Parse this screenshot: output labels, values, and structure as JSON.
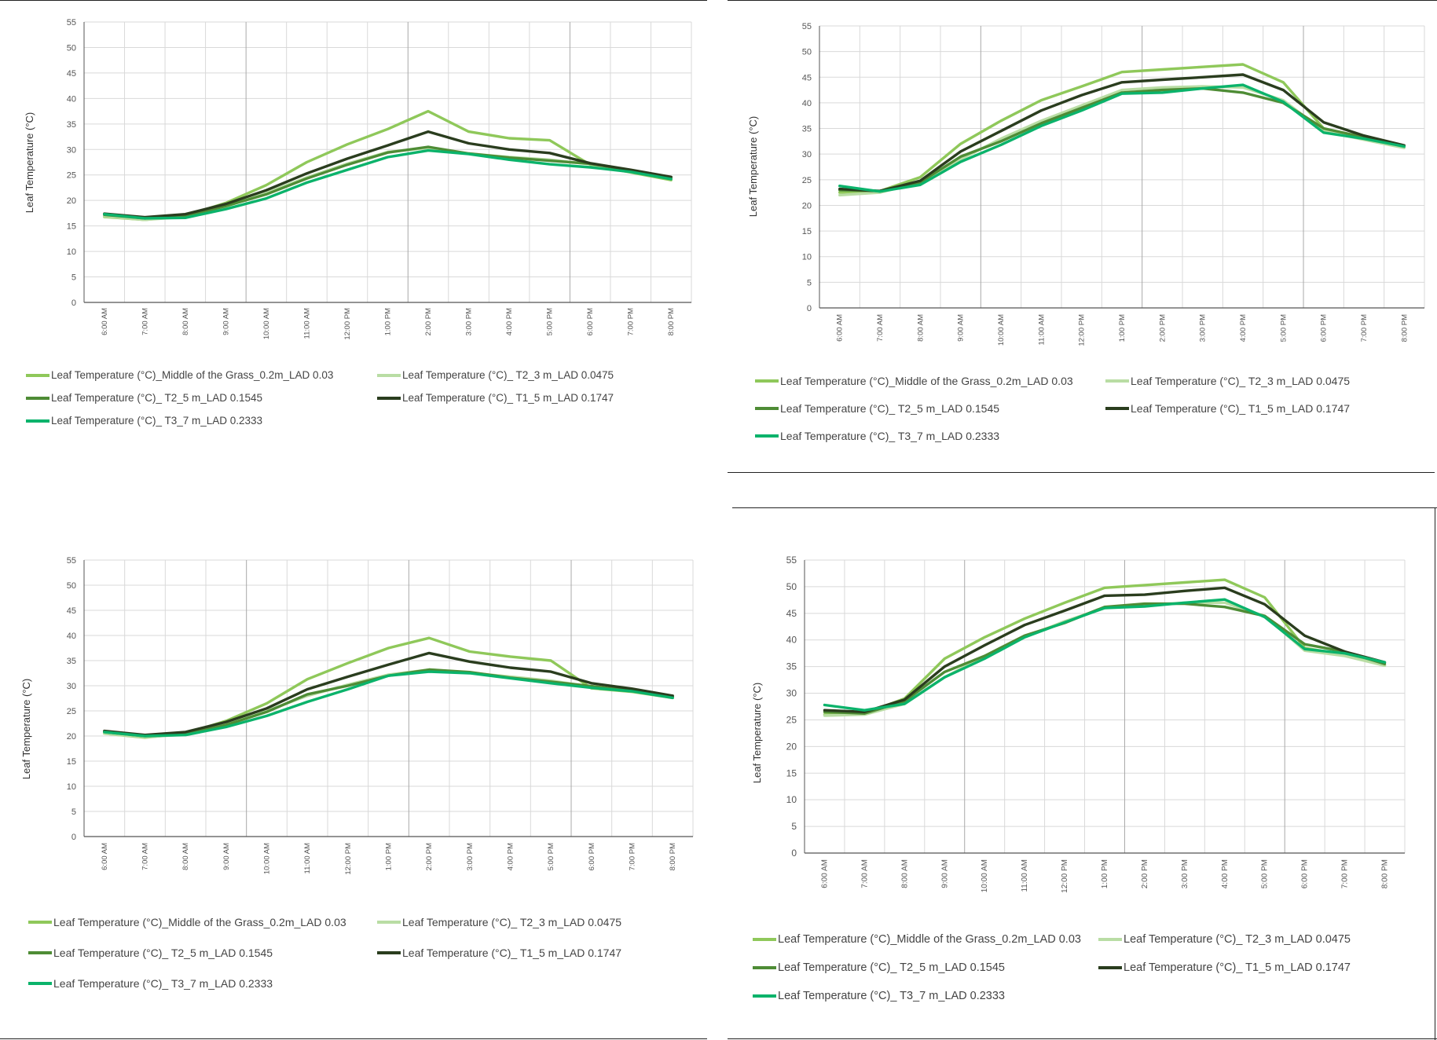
{
  "colors": {
    "series": [
      "#8fc85a",
      "#b9dda4",
      "#4e8c35",
      "#2a3d1e",
      "#0bb36b"
    ],
    "grid_minor": "#d9d9d9",
    "grid_major": "#a9a9a9",
    "axis": "#555555",
    "background": "#ffffff",
    "rule": "#222222"
  },
  "chart_data": [
    {
      "type": "line",
      "title": "",
      "xlabel": "",
      "ylabel": "Leaf Temperature (°C)",
      "ylim": [
        0,
        55
      ],
      "yticks": [
        "0",
        "5",
        "10",
        "15",
        "20",
        "25",
        "30",
        "35",
        "40",
        "45",
        "50",
        "55"
      ],
      "grid": true,
      "legend_position": "bottom",
      "categories": [
        "6:00 AM",
        "7:00 AM",
        "8:00 AM",
        "9:00 AM",
        "10:00 AM",
        "11:00 AM",
        "12:00 PM",
        "1:00 PM",
        "2:00 PM",
        "3:00 PM",
        "4:00 PM",
        "5:00 PM",
        "6:00 PM",
        "7:00 PM",
        "8:00 PM"
      ],
      "series": [
        {
          "name": "Leaf Temperature  (°C)_Middle of the Grass_0.2m_LAD 0.03",
          "values": [
            16.8,
            16.2,
            17.0,
            19.5,
            23.0,
            27.5,
            31.0,
            34.0,
            37.5,
            33.5,
            32.2,
            31.8,
            27.0,
            25.5,
            24.0
          ]
        },
        {
          "name": "Leaf Temperature  (°C)_ T2_3 m_LAD 0.0475",
          "values": [
            16.9,
            16.2,
            16.8,
            18.8,
            21.5,
            24.5,
            27.2,
            29.5,
            30.3,
            29.2,
            28.5,
            28.0,
            27.1,
            25.8,
            24.3
          ]
        },
        {
          "name": "Leaf Temperature  (°C)_ T2_5 m_LAD 0.1545",
          "values": [
            17.2,
            16.5,
            17.0,
            18.9,
            21.2,
            24.3,
            27.0,
            29.4,
            30.5,
            29.2,
            28.4,
            27.8,
            27.2,
            25.9,
            24.5
          ]
        },
        {
          "name": "Leaf Temperature  (°C)_ T1_5 m_LAD 0.1747",
          "values": [
            17.4,
            16.7,
            17.3,
            19.3,
            22.0,
            25.3,
            28.2,
            30.8,
            33.5,
            31.2,
            30.0,
            29.3,
            27.3,
            26.0,
            24.6
          ]
        },
        {
          "name": "Leaf Temperature  (°C)_ T3_7 m_LAD 0.2333",
          "values": [
            17.3,
            16.5,
            16.6,
            18.3,
            20.4,
            23.5,
            26.0,
            28.5,
            29.8,
            29.1,
            28.0,
            27.1,
            26.5,
            25.6,
            24.2
          ]
        }
      ]
    },
    {
      "type": "line",
      "title": "",
      "xlabel": "",
      "ylabel": "Leaf Temperature (°C)",
      "ylim": [
        0,
        55
      ],
      "yticks": [
        "0",
        "5",
        "10",
        "15",
        "20",
        "25",
        "30",
        "35",
        "40",
        "45",
        "50",
        "55"
      ],
      "grid": true,
      "legend_position": "bottom",
      "categories": [
        "6:00 AM",
        "7:00 AM",
        "8:00 AM",
        "9:00 AM",
        "10:00 AM",
        "11:00 AM",
        "12:00 PM",
        "1:00 PM",
        "2:00 PM",
        "3:00 PM",
        "4:00 PM",
        "5:00 PM",
        "6:00 PM",
        "7:00 PM",
        "8:00 PM"
      ],
      "series": [
        {
          "name": "Leaf Temperature  (°C)_Middle of the Grass_0.2m_LAD 0.03",
          "values": [
            22.5,
            22.8,
            25.5,
            32.0,
            36.5,
            40.5,
            43.2,
            46.0,
            46.5,
            47.0,
            47.5,
            44.0,
            35.0,
            33.2,
            31.5
          ]
        },
        {
          "name": "Leaf Temperature  (°C)_ T2_3 m_LAD 0.0475",
          "values": [
            22.0,
            22.5,
            24.5,
            29.0,
            33.0,
            36.5,
            39.5,
            42.5,
            43.0,
            43.2,
            43.0,
            40.5,
            34.5,
            32.8,
            31.2
          ]
        },
        {
          "name": "Leaf Temperature  (°C)_ T2_5 m_LAD 0.1545",
          "values": [
            23.0,
            22.8,
            24.5,
            29.5,
            32.5,
            36.0,
            39.0,
            42.0,
            42.5,
            42.8,
            42.0,
            40.0,
            35.0,
            33.3,
            31.5
          ]
        },
        {
          "name": "Leaf Temperature  (°C)_ T1_5 m_LAD 0.1747",
          "values": [
            23.2,
            22.8,
            24.8,
            30.5,
            34.5,
            38.5,
            41.5,
            44.0,
            44.5,
            45.0,
            45.5,
            42.5,
            36.2,
            33.6,
            31.7
          ]
        },
        {
          "name": "Leaf Temperature  (°C)_ T3_7 m_LAD 0.2333",
          "values": [
            23.8,
            22.7,
            24.0,
            28.5,
            31.8,
            35.5,
            38.5,
            41.8,
            42.0,
            42.8,
            43.5,
            40.2,
            34.2,
            33.0,
            31.5
          ]
        }
      ]
    },
    {
      "type": "line",
      "title": "",
      "xlabel": "",
      "ylabel": "Leaf Temperature (°C)",
      "ylim": [
        0,
        55
      ],
      "yticks": [
        "0",
        "5",
        "10",
        "15",
        "20",
        "25",
        "30",
        "35",
        "40",
        "45",
        "50",
        "55"
      ],
      "grid": true,
      "legend_position": "bottom",
      "categories": [
        "6:00 AM",
        "7:00 AM",
        "8:00 AM",
        "9:00 AM",
        "10:00 AM",
        "11:00 AM",
        "12:00 PM",
        "1:00 PM",
        "2:00 PM",
        "3:00 PM",
        "4:00 PM",
        "5:00 PM",
        "6:00 PM",
        "7:00 PM",
        "8:00 PM"
      ],
      "series": [
        {
          "name": "Leaf Temperature  (°C)_Middle of the Grass_0.2m_LAD 0.03",
          "values": [
            20.5,
            19.7,
            20.5,
            23.0,
            26.5,
            31.3,
            34.5,
            37.5,
            39.5,
            36.8,
            35.8,
            35.0,
            29.5,
            28.8,
            27.6
          ]
        },
        {
          "name": "Leaf Temperature  (°C)_ T2_3 m_LAD 0.0475",
          "values": [
            20.5,
            19.8,
            20.3,
            22.3,
            25.0,
            28.0,
            30.2,
            32.2,
            33.2,
            32.6,
            31.8,
            31.0,
            29.8,
            29.0,
            27.8
          ]
        },
        {
          "name": "Leaf Temperature  (°C)_ T2_5 m_LAD 0.1545",
          "values": [
            20.8,
            20.0,
            20.4,
            22.2,
            24.8,
            28.3,
            30.0,
            32.0,
            33.2,
            32.7,
            31.6,
            30.8,
            29.9,
            29.0,
            27.8
          ]
        },
        {
          "name": "Leaf Temperature  (°C)_ T1_5 m_LAD 0.1747",
          "values": [
            21.0,
            20.2,
            20.8,
            22.8,
            25.5,
            29.3,
            31.8,
            34.2,
            36.5,
            34.8,
            33.6,
            32.8,
            30.5,
            29.4,
            28.0
          ]
        },
        {
          "name": "Leaf Temperature  (°C)_ T3_7 m_LAD 0.2333",
          "values": [
            20.8,
            20.0,
            20.2,
            21.8,
            24.0,
            26.8,
            29.3,
            32.0,
            32.8,
            32.5,
            31.5,
            30.5,
            29.6,
            28.9,
            27.6
          ]
        }
      ]
    },
    {
      "type": "line",
      "title": "",
      "xlabel": "",
      "ylabel": "Leaf Temperature (°C)",
      "ylim": [
        0,
        55
      ],
      "yticks": [
        "0",
        "5",
        "10",
        "15",
        "20",
        "25",
        "30",
        "35",
        "40",
        "45",
        "50",
        "55"
      ],
      "grid": true,
      "legend_position": "bottom",
      "categories": [
        "6:00 AM",
        "7:00 AM",
        "8:00 AM",
        "9:00 AM",
        "10:00 AM",
        "11:00 AM",
        "12:00 PM",
        "1:00 PM",
        "2:00 PM",
        "3:00 PM",
        "4:00 PM",
        "5:00 PM",
        "6:00 PM",
        "7:00 PM",
        "8:00 PM"
      ],
      "series": [
        {
          "name": "Leaf Temperature  (°C)_Middle of the Grass_0.2m_LAD 0.03",
          "values": [
            26.0,
            26.2,
            29.0,
            36.5,
            40.5,
            44.0,
            47.0,
            49.8,
            50.3,
            50.8,
            51.3,
            48.0,
            38.5,
            37.2,
            35.2
          ]
        },
        {
          "name": "Leaf Temperature  (°C)_ T2_3 m_LAD 0.0475",
          "values": [
            25.8,
            26.0,
            28.0,
            33.0,
            37.0,
            40.5,
            43.5,
            46.0,
            46.5,
            47.0,
            47.0,
            44.5,
            38.0,
            37.0,
            35.2
          ]
        },
        {
          "name": "Leaf Temperature  (°C)_ T2_5 m_LAD 0.1545",
          "values": [
            26.5,
            26.2,
            28.5,
            34.0,
            37.0,
            40.8,
            43.2,
            46.2,
            46.8,
            46.8,
            46.2,
            44.5,
            39.2,
            37.8,
            35.5
          ]
        },
        {
          "name": "Leaf Temperature  (°C)_ T1_5 m_LAD 0.1747",
          "values": [
            26.8,
            26.5,
            28.8,
            35.0,
            39.0,
            42.8,
            45.5,
            48.3,
            48.5,
            49.2,
            49.8,
            46.7,
            40.8,
            37.8,
            35.8
          ]
        },
        {
          "name": "Leaf Temperature  (°C)_ T3_7 m_LAD 0.2333",
          "values": [
            27.8,
            26.8,
            28.0,
            33.0,
            36.5,
            40.5,
            43.3,
            46.0,
            46.3,
            47.0,
            47.6,
            44.3,
            38.3,
            37.5,
            35.8
          ]
        }
      ]
    }
  ]
}
